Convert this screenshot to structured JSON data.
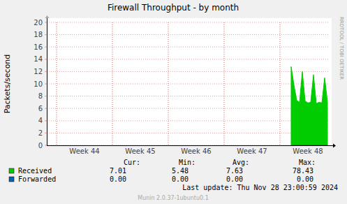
{
  "chart_data": {
    "type": "area",
    "title": "Firewall Throughput - by month",
    "y_label": "Packets/second",
    "watermark": "RRDTOOL / TOBI OETIKER",
    "last_update": "Last update: Thu Nov 28 23:00:59 2024",
    "footer": "Munin 2.0.37-1ubuntu0.1",
    "ylim": [
      0,
      20
    ],
    "yticks": [
      0,
      2,
      4,
      6,
      8,
      10,
      12,
      14,
      16,
      18,
      20
    ],
    "grid": true,
    "categories": [
      null,
      null,
      null,
      null,
      null,
      null,
      null,
      null,
      null,
      null,
      null,
      null,
      null,
      "Week 44",
      null,
      null,
      null,
      null,
      null,
      null,
      null,
      null,
      null,
      null,
      null,
      null,
      null,
      null,
      null,
      null,
      null,
      null,
      null,
      "Week 45",
      null,
      null,
      null,
      null,
      null,
      null,
      null,
      null,
      null,
      null,
      null,
      null,
      null,
      null,
      null,
      null,
      null,
      null,
      null,
      "Week 46",
      null,
      null,
      null,
      null,
      null,
      null,
      null,
      null,
      null,
      null,
      null,
      null,
      null,
      null,
      null,
      null,
      null,
      null,
      null,
      "Week 47",
      null,
      null,
      null,
      null,
      null,
      null,
      null,
      null,
      null,
      null,
      null,
      null,
      null,
      null,
      null,
      null,
      null,
      null,
      null,
      "Week 48",
      null,
      null,
      null,
      null,
      null,
      null,
      null
    ],
    "stats_headers": [
      "Cur:",
      "Min:",
      "Avg:",
      "Max:"
    ],
    "series": [
      {
        "name": "Received",
        "color": "#00cc00",
        "type": "area",
        "stats": [
          "7.01",
          "5.48",
          "7.63",
          "78.43"
        ],
        "values": [
          null,
          null,
          null,
          null,
          null,
          null,
          null,
          null,
          null,
          null,
          null,
          null,
          null,
          null,
          null,
          null,
          null,
          null,
          null,
          null,
          null,
          null,
          null,
          null,
          null,
          null,
          null,
          null,
          null,
          null,
          null,
          null,
          null,
          null,
          null,
          null,
          null,
          null,
          null,
          null,
          null,
          null,
          null,
          null,
          null,
          null,
          null,
          null,
          null,
          null,
          null,
          null,
          null,
          null,
          null,
          null,
          null,
          null,
          null,
          null,
          null,
          null,
          null,
          null,
          null,
          null,
          null,
          null,
          null,
          null,
          null,
          null,
          null,
          null,
          null,
          null,
          null,
          null,
          null,
          null,
          null,
          null,
          null,
          null,
          null,
          null,
          null,
          12.8,
          9.8,
          7.3,
          7.0,
          12.0,
          7.2,
          6.9,
          7.0,
          11.5,
          6.8,
          7.0,
          6.9,
          11.0,
          7.0
        ]
      },
      {
        "name": "Forwarded",
        "color": "#0066b3",
        "type": "line",
        "stats": [
          "0.00",
          "0.00",
          "0.00",
          "0.00"
        ],
        "values": [
          null,
          null,
          null,
          null,
          null,
          null,
          null,
          null,
          null,
          null,
          null,
          null,
          null,
          null,
          null,
          null,
          null,
          null,
          null,
          null,
          null,
          null,
          null,
          null,
          null,
          null,
          null,
          null,
          null,
          null,
          null,
          null,
          null,
          null,
          null,
          null,
          null,
          null,
          null,
          null,
          null,
          null,
          null,
          null,
          null,
          null,
          null,
          null,
          null,
          null,
          null,
          null,
          null,
          null,
          null,
          null,
          null,
          null,
          null,
          null,
          null,
          null,
          null,
          null,
          null,
          null,
          null,
          null,
          null,
          null,
          null,
          null,
          null,
          null,
          null,
          null,
          null,
          null,
          null,
          null,
          null,
          null,
          null,
          null,
          null,
          null,
          null,
          0,
          0,
          0,
          0,
          0,
          0,
          0,
          0,
          0,
          0,
          0,
          0,
          0,
          0
        ]
      }
    ]
  }
}
